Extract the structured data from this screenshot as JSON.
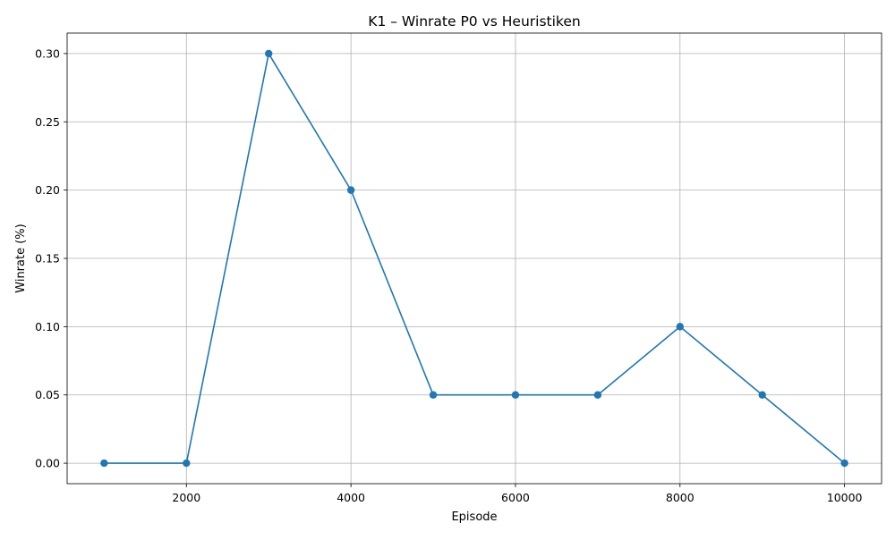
{
  "chart_data": {
    "type": "line",
    "title": "K1 – Winrate P0 vs Heuristiken",
    "xlabel": "Episode",
    "ylabel": "Winrate (%)",
    "x": [
      1000,
      2000,
      3000,
      4000,
      5000,
      6000,
      7000,
      8000,
      9000,
      10000
    ],
    "series": [
      {
        "values": [
          0.0,
          0.0,
          0.3,
          0.2,
          0.05,
          0.05,
          0.05,
          0.1,
          0.05,
          0.0
        ]
      }
    ],
    "xlim": [
      550,
      10450
    ],
    "ylim": [
      -0.015,
      0.315
    ],
    "x_ticks": [
      2000,
      4000,
      6000,
      8000,
      10000
    ],
    "x_tick_labels": [
      "2000",
      "4000",
      "6000",
      "8000",
      "10000"
    ],
    "y_ticks": [
      0.0,
      0.05,
      0.1,
      0.15,
      0.2,
      0.25,
      0.3
    ],
    "y_tick_labels": [
      "0.00",
      "0.05",
      "0.10",
      "0.15",
      "0.20",
      "0.25",
      "0.30"
    ],
    "grid": true,
    "markers": "circle",
    "colors": {
      "line": "#1f77b4",
      "grid": "#b0b0b0",
      "axes": "#000000"
    }
  }
}
